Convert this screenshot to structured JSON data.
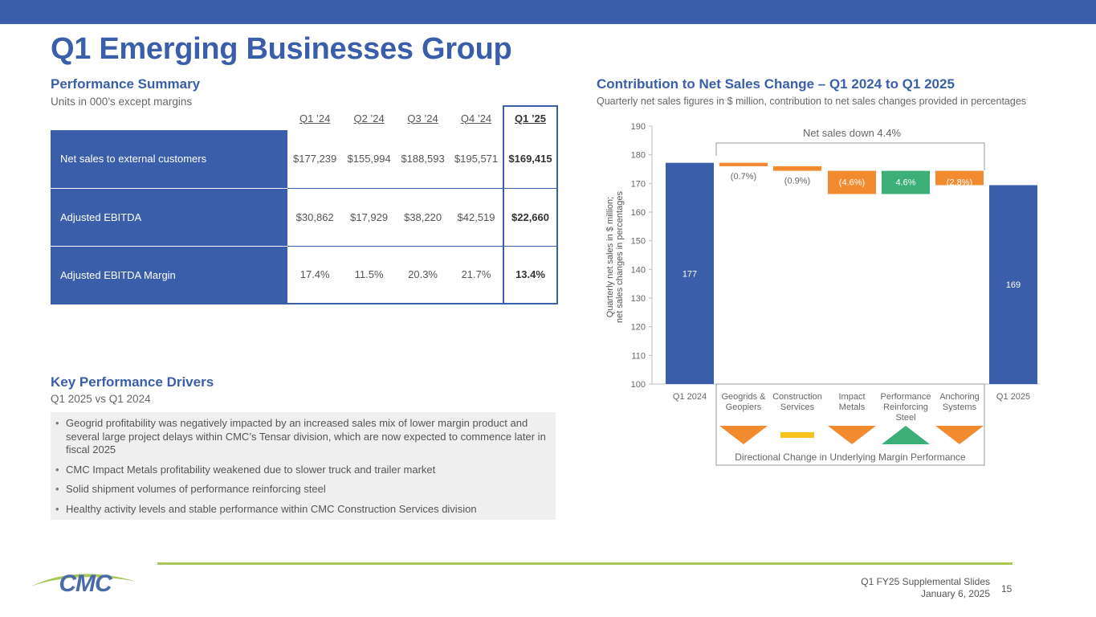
{
  "page": {
    "title": "Q1 Emerging Businesses Group",
    "footer_line1": "Q1 FY25 Supplemental Slides",
    "footer_line2": "January 6, 2025",
    "page_number": "15"
  },
  "logo": {
    "text": "CMC"
  },
  "performance": {
    "title": "Performance Summary",
    "subtitle": "Units in 000’s except margins",
    "columns": [
      "Q1 ’24",
      "Q2 ’24",
      "Q3 ’24",
      "Q4 ’24",
      "Q1 ’25"
    ],
    "rows": [
      {
        "label": "Net sales to external customers",
        "values": [
          "$177,239",
          "$155,994",
          "$188,593",
          "$195,571",
          "$169,415"
        ]
      },
      {
        "label": "Adjusted EBITDA",
        "values": [
          "$30,862",
          "$17,929",
          "$38,220",
          "$42,519",
          "$22,660"
        ]
      },
      {
        "label": "Adjusted EBITDA Margin",
        "values": [
          "17.4%",
          "11.5%",
          "20.3%",
          "21.7%",
          "13.4%"
        ]
      }
    ]
  },
  "drivers": {
    "title": "Key Performance Drivers",
    "subtitle": "Q1 2025 vs Q1 2024",
    "items": [
      "Geogrid profitability was negatively impacted by an increased sales mix of lower margin product and several large project delays within CMC’s Tensar division, which are now expected to commence later in fiscal 2025",
      "CMC Impact Metals profitability weakened due to slower truck and trailer market",
      "Solid shipment volumes of performance reinforcing steel",
      "Healthy activity levels and stable performance within CMC Construction Services division"
    ]
  },
  "contribution": {
    "title": "Contribution to Net Sales Change – Q1 2024 to Q1 2025",
    "subtitle": "Quarterly net sales figures in $ million, contribution to net sales changes provided in percentages"
  },
  "colors": {
    "brand_blue": "#3a5ea9",
    "orange": "#f28a30",
    "yellow": "#f7c11e",
    "green": "#3cae78",
    "lime": "#a8c85a"
  },
  "chart_data": {
    "type": "bar",
    "subtype": "waterfall",
    "ylabel_lines": [
      "Quarterly net sales in $ million;",
      "net sales changes in percentages"
    ],
    "ylim": [
      100,
      190
    ],
    "yticks": [
      100,
      110,
      120,
      130,
      140,
      150,
      160,
      170,
      180,
      190
    ],
    "annotation": "Net sales down 4.4%",
    "legend_caption": "Directional Change in Underlying Margin Performance",
    "bars": [
      {
        "label": [
          "Q1 2024"
        ],
        "kind": "total",
        "value": 177.2,
        "display": "177",
        "color": "#3a5ea9"
      },
      {
        "label": [
          "Geogrids &",
          "Geopiers"
        ],
        "kind": "delta",
        "start": 177.2,
        "end": 176.0,
        "display": "(0.7%)",
        "label_pos": "below",
        "color": "#f28a30",
        "direction": "down",
        "direction_color": "#f28a30"
      },
      {
        "label": [
          "Construction",
          "Services"
        ],
        "kind": "delta",
        "start": 176.0,
        "end": 174.4,
        "display": "(0.9%)",
        "label_pos": "below",
        "color": "#f28a30",
        "direction": "flat",
        "direction_color": "#f7c11e"
      },
      {
        "label": [
          "Impact",
          "Metals"
        ],
        "kind": "delta",
        "start": 174.4,
        "end": 166.3,
        "display": "(4.6%)",
        "label_pos": "inside",
        "color": "#f28a30",
        "direction": "down",
        "direction_color": "#f28a30"
      },
      {
        "label": [
          "Performance",
          "Reinforcing",
          "Steel"
        ],
        "kind": "delta",
        "start": 166.3,
        "end": 174.4,
        "display": "4.6%",
        "label_pos": "inside",
        "color": "#3cae78",
        "direction": "up",
        "direction_color": "#3cae78"
      },
      {
        "label": [
          "Anchoring",
          "Systems"
        ],
        "kind": "delta",
        "start": 174.4,
        "end": 169.4,
        "display": "(2.8%)",
        "label_pos": "inside",
        "color": "#f28a30",
        "direction": "down",
        "direction_color": "#f28a30"
      },
      {
        "label": [
          "Q1 2025"
        ],
        "kind": "total",
        "value": 169.4,
        "display": "169",
        "color": "#3a5ea9"
      }
    ]
  }
}
